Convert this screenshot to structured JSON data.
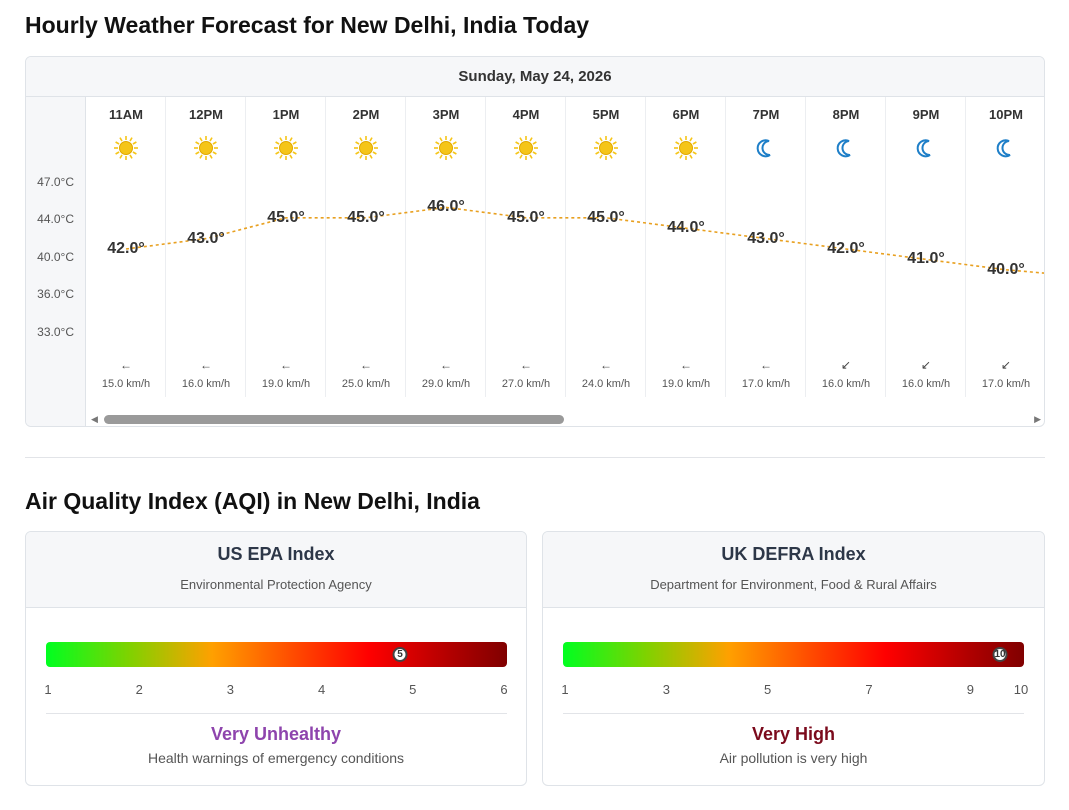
{
  "forecast": {
    "heading": "Hourly Weather Forecast for New Delhi, India Today",
    "date": "Sunday, May 24, 2026",
    "y_ticks": [
      "47.0°C",
      "44.0°C",
      "40.0°C",
      "36.0°C",
      "33.0°C"
    ],
    "hours": [
      {
        "time": "11AM",
        "icon": "sun-icon",
        "temp": 42.0,
        "temp_label": "42.0°",
        "wind_arrow": "←",
        "wind": "15.0 km/h"
      },
      {
        "time": "12PM",
        "icon": "sun-icon",
        "temp": 43.0,
        "temp_label": "43.0°",
        "wind_arrow": "←",
        "wind": "16.0 km/h"
      },
      {
        "time": "1PM",
        "icon": "sun-icon",
        "temp": 45.0,
        "temp_label": "45.0°",
        "wind_arrow": "←",
        "wind": "19.0 km/h"
      },
      {
        "time": "2PM",
        "icon": "sun-icon",
        "temp": 45.0,
        "temp_label": "45.0°",
        "wind_arrow": "←",
        "wind": "25.0 km/h"
      },
      {
        "time": "3PM",
        "icon": "sun-icon",
        "temp": 46.0,
        "temp_label": "46.0°",
        "wind_arrow": "←",
        "wind": "29.0 km/h"
      },
      {
        "time": "4PM",
        "icon": "sun-icon",
        "temp": 45.0,
        "temp_label": "45.0°",
        "wind_arrow": "←",
        "wind": "27.0 km/h"
      },
      {
        "time": "5PM",
        "icon": "sun-icon",
        "temp": 45.0,
        "temp_label": "45.0°",
        "wind_arrow": "←",
        "wind": "24.0 km/h"
      },
      {
        "time": "6PM",
        "icon": "sun-icon",
        "temp": 44.0,
        "temp_label": "44.0°",
        "wind_arrow": "←",
        "wind": "19.0 km/h"
      },
      {
        "time": "7PM",
        "icon": "moon-icon",
        "temp": 43.0,
        "temp_label": "43.0°",
        "wind_arrow": "←",
        "wind": "17.0 km/h"
      },
      {
        "time": "8PM",
        "icon": "moon-icon",
        "temp": 42.0,
        "temp_label": "42.0°",
        "wind_arrow": "↙",
        "wind": "16.0 km/h"
      },
      {
        "time": "9PM",
        "icon": "moon-icon",
        "temp": 41.0,
        "temp_label": "41.0°",
        "wind_arrow": "↙",
        "wind": "16.0 km/h"
      },
      {
        "time": "10PM",
        "icon": "moon-icon",
        "temp": 40.0,
        "temp_label": "40.0°",
        "wind_arrow": "↙",
        "wind": "17.0 km/h"
      }
    ],
    "line_color": "#e8a020",
    "sun_color": "#f5c518",
    "moon_color": "#1e7fc8"
  },
  "aqi": {
    "heading": "Air Quality Index (AQI) in New Delhi, India",
    "us": {
      "title": "US EPA Index",
      "subtitle": "Environmental Protection Agency",
      "value": 5,
      "value_label": "5",
      "scale_min": 1,
      "scale_max": 6,
      "scale_labels": [
        "1",
        "2",
        "3",
        "4",
        "5",
        "6"
      ],
      "category": "Very Unhealthy",
      "category_color": "#8e44ad",
      "description": "Health warnings of emergency conditions"
    },
    "uk": {
      "title": "UK DEFRA Index",
      "subtitle": "Department for Environment, Food & Rural Affairs",
      "value": 10,
      "value_label": "10",
      "scale_min": 1,
      "scale_max": 10,
      "scale_labels": [
        "1",
        "3",
        "5",
        "7",
        "9",
        "10"
      ],
      "scale_values": [
        1,
        3,
        5,
        7,
        9,
        10
      ],
      "category": "Very High",
      "category_color": "#7b0a1c",
      "description": "Air pollution is very high"
    }
  }
}
